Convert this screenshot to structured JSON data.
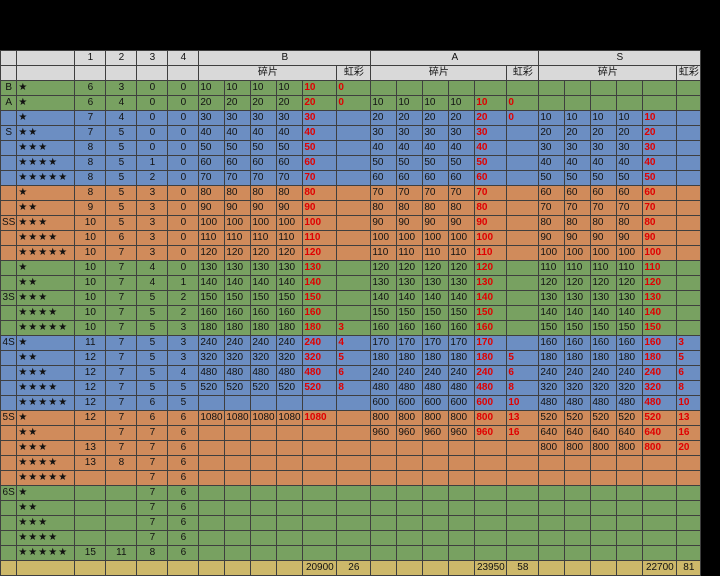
{
  "header": {
    "cols": [
      "1",
      "2",
      "3",
      "4"
    ],
    "sections": [
      "B",
      "A",
      "S"
    ],
    "sub_fragment": "碎片",
    "sub_rainbow": "虹彩"
  },
  "rows": [
    {
      "bg": "green",
      "grade": "B",
      "stars": "★",
      "c": [
        "6",
        "3",
        "0",
        "0"
      ],
      "B": [
        "10",
        "10",
        "10",
        "10",
        "10"
      ],
      "Br": "0",
      "A": [
        "",
        "",
        "",
        "",
        ""
      ],
      "Ar": "",
      "S": [
        "",
        "",
        "",
        "",
        ""
      ],
      "Sr": ""
    },
    {
      "bg": "green",
      "grade": "A",
      "stars": "★",
      "c": [
        "6",
        "4",
        "0",
        "0"
      ],
      "B": [
        "20",
        "20",
        "20",
        "20",
        "20"
      ],
      "Br": "0",
      "A": [
        "10",
        "10",
        "10",
        "10",
        "10"
      ],
      "Ar": "0",
      "S": [
        "",
        "",
        "",
        "",
        ""
      ],
      "Sr": ""
    },
    {
      "bg": "blue",
      "grade": "",
      "stars": "★",
      "c": [
        "7",
        "4",
        "0",
        "0"
      ],
      "B": [
        "30",
        "30",
        "30",
        "30",
        "30"
      ],
      "Br": "",
      "A": [
        "20",
        "20",
        "20",
        "20",
        "20"
      ],
      "Ar": "0",
      "S": [
        "10",
        "10",
        "10",
        "10",
        "10"
      ],
      "Sr": ""
    },
    {
      "bg": "blue",
      "grade": "S",
      "stars": "★★",
      "c": [
        "7",
        "5",
        "0",
        "0"
      ],
      "B": [
        "40",
        "40",
        "40",
        "40",
        "40"
      ],
      "Br": "",
      "A": [
        "30",
        "30",
        "30",
        "30",
        "30"
      ],
      "Ar": "",
      "S": [
        "20",
        "20",
        "20",
        "20",
        "20"
      ],
      "Sr": ""
    },
    {
      "bg": "blue",
      "grade": "",
      "stars": "★★★",
      "c": [
        "8",
        "5",
        "0",
        "0"
      ],
      "B": [
        "50",
        "50",
        "50",
        "50",
        "50"
      ],
      "Br": "",
      "A": [
        "40",
        "40",
        "40",
        "40",
        "40"
      ],
      "Ar": "",
      "S": [
        "30",
        "30",
        "30",
        "30",
        "30"
      ],
      "Sr": ""
    },
    {
      "bg": "blue",
      "grade": "",
      "stars": "★★★★",
      "c": [
        "8",
        "5",
        "1",
        "0"
      ],
      "B": [
        "60",
        "60",
        "60",
        "60",
        "60"
      ],
      "Br": "",
      "A": [
        "50",
        "50",
        "50",
        "50",
        "50"
      ],
      "Ar": "",
      "S": [
        "40",
        "40",
        "40",
        "40",
        "40"
      ],
      "Sr": ""
    },
    {
      "bg": "blue",
      "grade": "",
      "stars": "★★★★★",
      "c": [
        "8",
        "5",
        "2",
        "0"
      ],
      "B": [
        "70",
        "70",
        "70",
        "70",
        "70"
      ],
      "Br": "",
      "A": [
        "60",
        "60",
        "60",
        "60",
        "60"
      ],
      "Ar": "",
      "S": [
        "50",
        "50",
        "50",
        "50",
        "50"
      ],
      "Sr": ""
    },
    {
      "bg": "orange",
      "grade": "",
      "stars": "★",
      "c": [
        "8",
        "5",
        "3",
        "0"
      ],
      "B": [
        "80",
        "80",
        "80",
        "80",
        "80"
      ],
      "Br": "",
      "A": [
        "70",
        "70",
        "70",
        "70",
        "70"
      ],
      "Ar": "",
      "S": [
        "60",
        "60",
        "60",
        "60",
        "60"
      ],
      "Sr": ""
    },
    {
      "bg": "orange",
      "grade": "",
      "stars": "★★",
      "c": [
        "9",
        "5",
        "3",
        "0"
      ],
      "B": [
        "90",
        "90",
        "90",
        "90",
        "90"
      ],
      "Br": "",
      "A": [
        "80",
        "80",
        "80",
        "80",
        "80"
      ],
      "Ar": "",
      "S": [
        "70",
        "70",
        "70",
        "70",
        "70"
      ],
      "Sr": ""
    },
    {
      "bg": "orange",
      "grade": "SS",
      "stars": "★★★",
      "c": [
        "10",
        "5",
        "3",
        "0"
      ],
      "B": [
        "100",
        "100",
        "100",
        "100",
        "100"
      ],
      "Br": "",
      "A": [
        "90",
        "90",
        "90",
        "90",
        "90"
      ],
      "Ar": "",
      "S": [
        "80",
        "80",
        "80",
        "80",
        "80"
      ],
      "Sr": ""
    },
    {
      "bg": "orange",
      "grade": "",
      "stars": "★★★★",
      "c": [
        "10",
        "6",
        "3",
        "0"
      ],
      "B": [
        "110",
        "110",
        "110",
        "110",
        "110"
      ],
      "Br": "",
      "A": [
        "100",
        "100",
        "100",
        "100",
        "100"
      ],
      "Ar": "",
      "S": [
        "90",
        "90",
        "90",
        "90",
        "90"
      ],
      "Sr": ""
    },
    {
      "bg": "orange",
      "grade": "",
      "stars": "★★★★★",
      "c": [
        "10",
        "7",
        "3",
        "0"
      ],
      "B": [
        "120",
        "120",
        "120",
        "120",
        "120"
      ],
      "Br": "",
      "A": [
        "110",
        "110",
        "110",
        "110",
        "110"
      ],
      "Ar": "",
      "S": [
        "100",
        "100",
        "100",
        "100",
        "100"
      ],
      "Sr": ""
    },
    {
      "bg": "green",
      "grade": "",
      "stars": "★",
      "c": [
        "10",
        "7",
        "4",
        "0"
      ],
      "B": [
        "130",
        "130",
        "130",
        "130",
        "130"
      ],
      "Br": "",
      "A": [
        "120",
        "120",
        "120",
        "120",
        "120"
      ],
      "Ar": "",
      "S": [
        "110",
        "110",
        "110",
        "110",
        "110"
      ],
      "Sr": ""
    },
    {
      "bg": "green",
      "grade": "",
      "stars": "★★",
      "c": [
        "10",
        "7",
        "4",
        "1"
      ],
      "B": [
        "140",
        "140",
        "140",
        "140",
        "140"
      ],
      "Br": "",
      "A": [
        "130",
        "130",
        "130",
        "130",
        "130"
      ],
      "Ar": "",
      "S": [
        "120",
        "120",
        "120",
        "120",
        "120"
      ],
      "Sr": ""
    },
    {
      "bg": "green",
      "grade": "3S",
      "stars": "★★★",
      "c": [
        "10",
        "7",
        "5",
        "2"
      ],
      "B": [
        "150",
        "150",
        "150",
        "150",
        "150"
      ],
      "Br": "",
      "A": [
        "140",
        "140",
        "140",
        "140",
        "140"
      ],
      "Ar": "",
      "S": [
        "130",
        "130",
        "130",
        "130",
        "130"
      ],
      "Sr": ""
    },
    {
      "bg": "green",
      "grade": "",
      "stars": "★★★★",
      "c": [
        "10",
        "7",
        "5",
        "2"
      ],
      "B": [
        "160",
        "160",
        "160",
        "160",
        "160"
      ],
      "Br": "",
      "A": [
        "150",
        "150",
        "150",
        "150",
        "150"
      ],
      "Ar": "",
      "S": [
        "140",
        "140",
        "140",
        "140",
        "140"
      ],
      "Sr": ""
    },
    {
      "bg": "green",
      "grade": "",
      "stars": "★★★★★",
      "c": [
        "10",
        "7",
        "5",
        "3"
      ],
      "B": [
        "180",
        "180",
        "180",
        "180",
        "180"
      ],
      "Br": "3",
      "A": [
        "160",
        "160",
        "160",
        "160",
        "160"
      ],
      "Ar": "",
      "S": [
        "150",
        "150",
        "150",
        "150",
        "150"
      ],
      "Sr": ""
    },
    {
      "bg": "blue",
      "grade": "4S",
      "stars": "★",
      "c": [
        "11",
        "7",
        "5",
        "3"
      ],
      "B": [
        "240",
        "240",
        "240",
        "240",
        "240"
      ],
      "Br": "4",
      "A": [
        "170",
        "170",
        "170",
        "170",
        "170"
      ],
      "Ar": "",
      "S": [
        "160",
        "160",
        "160",
        "160",
        "160"
      ],
      "Sr": "3"
    },
    {
      "bg": "blue",
      "grade": "",
      "stars": "★★",
      "c": [
        "12",
        "7",
        "5",
        "3"
      ],
      "B": [
        "320",
        "320",
        "320",
        "320",
        "320"
      ],
      "Br": "5",
      "A": [
        "180",
        "180",
        "180",
        "180",
        "180"
      ],
      "Ar": "5",
      "S": [
        "180",
        "180",
        "180",
        "180",
        "180"
      ],
      "Sr": "5"
    },
    {
      "bg": "blue",
      "grade": "",
      "stars": "★★★",
      "c": [
        "12",
        "7",
        "5",
        "4"
      ],
      "B": [
        "480",
        "480",
        "480",
        "480",
        "480"
      ],
      "Br": "6",
      "A": [
        "240",
        "240",
        "240",
        "240",
        "240"
      ],
      "Ar": "6",
      "S": [
        "240",
        "240",
        "240",
        "240",
        "240"
      ],
      "Sr": "6"
    },
    {
      "bg": "blue",
      "grade": "",
      "stars": "★★★★",
      "c": [
        "12",
        "7",
        "5",
        "5"
      ],
      "B": [
        "520",
        "520",
        "520",
        "520",
        "520"
      ],
      "Br": "8",
      "A": [
        "480",
        "480",
        "480",
        "480",
        "480"
      ],
      "Ar": "8",
      "S": [
        "320",
        "320",
        "320",
        "320",
        "320"
      ],
      "Sr": "8"
    },
    {
      "bg": "blue",
      "grade": "",
      "stars": "★★★★★",
      "c": [
        "12",
        "7",
        "6",
        "5"
      ],
      "B": [
        "",
        "",
        "",
        "",
        ""
      ],
      "Br": "",
      "A": [
        "600",
        "600",
        "600",
        "600",
        "600"
      ],
      "Ar": "10",
      "S": [
        "480",
        "480",
        "480",
        "480",
        "480"
      ],
      "Sr": "10"
    },
    {
      "bg": "orange",
      "grade": "5S",
      "stars": "★",
      "c": [
        "12",
        "7",
        "6",
        "6"
      ],
      "B": [
        "1080",
        "1080",
        "1080",
        "1080",
        "1080"
      ],
      "Br": "",
      "A": [
        "800",
        "800",
        "800",
        "800",
        "800"
      ],
      "Ar": "13",
      "S": [
        "520",
        "520",
        "520",
        "520",
        "520"
      ],
      "Sr": "13"
    },
    {
      "bg": "orange",
      "grade": "",
      "stars": "★★",
      "c": [
        "",
        "7",
        "7",
        "6"
      ],
      "B": [
        "",
        "",
        "",
        "",
        ""
      ],
      "Br": "",
      "A": [
        "960",
        "960",
        "960",
        "960",
        "960"
      ],
      "Ar": "16",
      "S": [
        "640",
        "640",
        "640",
        "640",
        "640"
      ],
      "Sr": "16"
    },
    {
      "bg": "orange",
      "grade": "",
      "stars": "★★★",
      "c": [
        "13",
        "7",
        "7",
        "6"
      ],
      "B": [
        "",
        "",
        "",
        "",
        ""
      ],
      "Br": "",
      "A": [
        "",
        "",
        "",
        "",
        ""
      ],
      "Ar": "",
      "S": [
        "800",
        "800",
        "800",
        "800",
        "800"
      ],
      "Sr": "20"
    },
    {
      "bg": "orange",
      "grade": "",
      "stars": "★★★★",
      "c": [
        "13",
        "8",
        "7",
        "6"
      ],
      "B": [
        "",
        "",
        "",
        "",
        ""
      ],
      "Br": "",
      "A": [
        "",
        "",
        "",
        "",
        ""
      ],
      "Ar": "",
      "S": [
        "",
        "",
        "",
        "",
        ""
      ],
      "Sr": ""
    },
    {
      "bg": "orange",
      "grade": "",
      "stars": "★★★★★",
      "c": [
        "",
        "",
        "7",
        "6"
      ],
      "B": [
        "",
        "",
        "",
        "",
        ""
      ],
      "Br": "",
      "A": [
        "",
        "",
        "",
        "",
        ""
      ],
      "Ar": "",
      "S": [
        "",
        "",
        "",
        "",
        ""
      ],
      "Sr": ""
    },
    {
      "bg": "green",
      "grade": "6S",
      "stars": "★",
      "c": [
        "",
        "",
        "7",
        "6"
      ],
      "B": [
        "",
        "",
        "",
        "",
        ""
      ],
      "Br": "",
      "A": [
        "",
        "",
        "",
        "",
        ""
      ],
      "Ar": "",
      "S": [
        "",
        "",
        "",
        "",
        ""
      ],
      "Sr": ""
    },
    {
      "bg": "green",
      "grade": "",
      "stars": "★★",
      "c": [
        "",
        "",
        "7",
        "6"
      ],
      "B": [
        "",
        "",
        "",
        "",
        ""
      ],
      "Br": "",
      "A": [
        "",
        "",
        "",
        "",
        ""
      ],
      "Ar": "",
      "S": [
        "",
        "",
        "",
        "",
        ""
      ],
      "Sr": ""
    },
    {
      "bg": "green",
      "grade": "",
      "stars": "★★★",
      "c": [
        "",
        "",
        "7",
        "6"
      ],
      "B": [
        "",
        "",
        "",
        "",
        ""
      ],
      "Br": "",
      "A": [
        "",
        "",
        "",
        "",
        ""
      ],
      "Ar": "",
      "S": [
        "",
        "",
        "",
        "",
        ""
      ],
      "Sr": ""
    },
    {
      "bg": "green",
      "grade": "",
      "stars": "★★★★",
      "c": [
        "",
        "",
        "7",
        "6"
      ],
      "B": [
        "",
        "",
        "",
        "",
        ""
      ],
      "Br": "",
      "A": [
        "",
        "",
        "",
        "",
        ""
      ],
      "Ar": "",
      "S": [
        "",
        "",
        "",
        "",
        ""
      ],
      "Sr": ""
    },
    {
      "bg": "green",
      "grade": "",
      "stars": "★★★★★",
      "c": [
        "15",
        "11",
        "8",
        "6"
      ],
      "B": [
        "",
        "",
        "",
        "",
        ""
      ],
      "Br": "",
      "A": [
        "",
        "",
        "",
        "",
        ""
      ],
      "Ar": "",
      "S": [
        "",
        "",
        "",
        "",
        ""
      ],
      "Sr": ""
    }
  ],
  "totals": {
    "B": "20900",
    "Br": "26",
    "A": "23950",
    "Ar": "58",
    "S": "22700",
    "Sr": "81"
  }
}
